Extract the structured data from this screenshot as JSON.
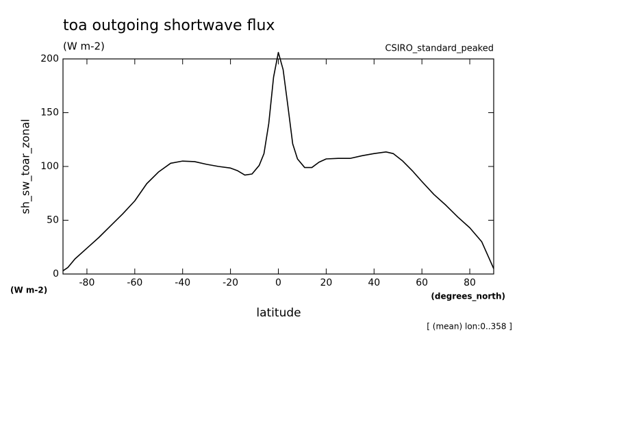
{
  "chart_data": {
    "type": "line",
    "title": "toa outgoing shortwave flux",
    "subtitle": "(W m-2)",
    "dataset_label": "CSIRO_standard_peaked",
    "y_label": "sh_sw_toar_zonal",
    "y_units": "(W m-2)",
    "x_label": "latitude",
    "x_units": "(degrees_north)",
    "note": "[ (mean) lon:0..358 ]",
    "x": [
      -90,
      -88,
      -85,
      -80,
      -75,
      -70,
      -65,
      -60,
      -55,
      -50,
      -45,
      -40,
      -35,
      -30,
      -25,
      -20,
      -17,
      -14,
      -11,
      -8,
      -6,
      -4,
      -2,
      0,
      2,
      4,
      6,
      8,
      11,
      14,
      17,
      20,
      25,
      30,
      35,
      40,
      45,
      48,
      52,
      56,
      60,
      65,
      70,
      75,
      80,
      85,
      88,
      90
    ],
    "series": [
      {
        "name": "sh_sw_toar_zonal",
        "color": "#000000",
        "values": [
          3,
          6,
          14,
          24,
          34,
          45,
          56,
          68,
          84,
          95,
          103,
          105,
          104.5,
          102,
          100,
          98.5,
          96,
          92,
          93,
          101,
          112,
          140,
          183,
          206,
          190,
          156,
          121,
          107,
          99,
          99,
          104,
          107,
          107.5,
          107.5,
          110,
          112,
          113.5,
          112,
          105,
          96,
          86,
          74,
          64,
          53,
          43,
          30,
          15,
          5
        ]
      }
    ],
    "xlim": [
      -90,
      90
    ],
    "xticks": [
      -80,
      -60,
      -40,
      -20,
      0,
      20,
      40,
      60,
      80
    ],
    "ylim": [
      0,
      200
    ],
    "yticks": [
      0,
      50,
      100,
      150,
      200
    ],
    "grid": false
  }
}
